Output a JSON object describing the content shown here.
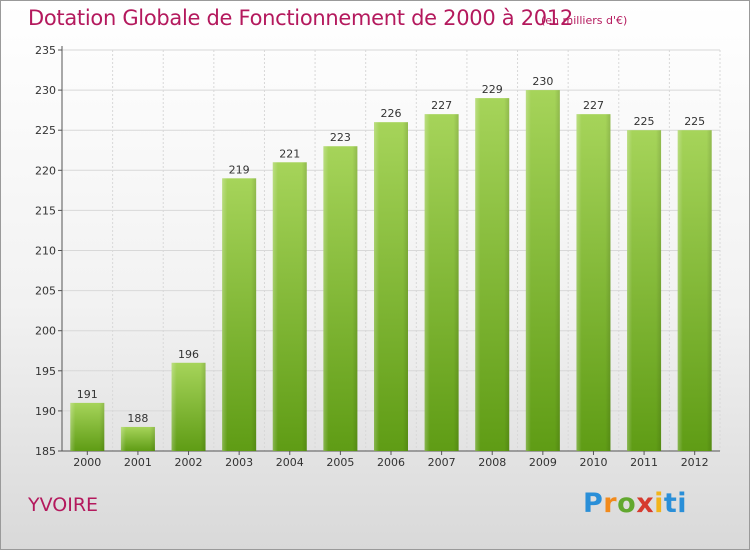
{
  "chart_data": {
    "type": "bar",
    "title": "Dotation Globale de Fonctionnement de 2000 à 2012",
    "subtitle": "(en milliers d'€)",
    "categories": [
      "2000",
      "2001",
      "2002",
      "2003",
      "2004",
      "2005",
      "2006",
      "2007",
      "2008",
      "2009",
      "2010",
      "2011",
      "2012"
    ],
    "values": [
      191,
      188,
      196,
      219,
      221,
      223,
      226,
      227,
      229,
      230,
      227,
      225,
      225
    ],
    "ylim": [
      185,
      235
    ],
    "yticks": [
      185,
      190,
      195,
      200,
      205,
      210,
      215,
      220,
      225,
      230,
      235
    ],
    "grid": true,
    "colors": {
      "bar_top": "#a6d45a",
      "bar_bottom": "#5f9c15",
      "grid": "#d8d8d8",
      "title": "#b4195d"
    }
  },
  "footer": {
    "commune": "YVOIRE",
    "logo_parts": [
      "P",
      "r",
      "o",
      "x",
      "i",
      "ti"
    ]
  }
}
